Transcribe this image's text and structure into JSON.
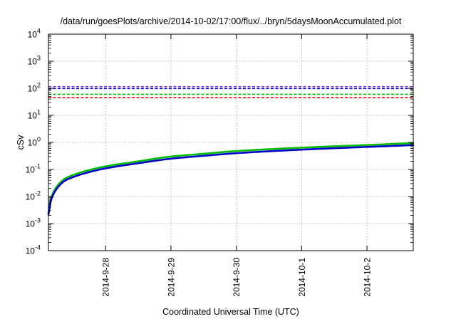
{
  "chart_data": {
    "type": "line",
    "title": "/data/run/goesPlots/archive/2014-10-02/17:00/flux/../bryn/5daysMoonAccumulated.plot",
    "xlabel": "Coordinated Universal Time (UTC)",
    "ylabel": "cSv",
    "y_scale": "log",
    "ylim": [
      0.0001,
      10000
    ],
    "y_ticks": [
      {
        "base": "10",
        "exp": "-4",
        "value": 0.0001
      },
      {
        "base": "10",
        "exp": "-3",
        "value": 0.001
      },
      {
        "base": "10",
        "exp": "-2",
        "value": 0.01
      },
      {
        "base": "10",
        "exp": "-1",
        "value": 0.1
      },
      {
        "base": "10",
        "exp": "0",
        "value": 1
      },
      {
        "base": "10",
        "exp": "1",
        "value": 10
      },
      {
        "base": "10",
        "exp": "2",
        "value": 100
      },
      {
        "base": "10",
        "exp": "3",
        "value": 1000
      },
      {
        "base": "10",
        "exp": "4",
        "value": 10000
      }
    ],
    "xlim": [
      "2014-09-27 03:00",
      "2014-10-02 17:00"
    ],
    "x_ticks": [
      {
        "label": "2014-9-28",
        "value": "2014-09-28 00:00"
      },
      {
        "label": "2014-9-29",
        "value": "2014-09-29 00:00"
      },
      {
        "label": "2014-9-30",
        "value": "2014-09-30 00:00"
      },
      {
        "label": "2014-10-1",
        "value": "2014-10-01 00:00"
      },
      {
        "label": "2014-10-2",
        "value": "2014-10-02 00:00"
      }
    ],
    "grid": true,
    "reference_lines": [
      {
        "value": 115,
        "color": "#8b3fc8"
      },
      {
        "value": 98,
        "color": "#0000cc"
      },
      {
        "value": 60,
        "color": "#00bb00"
      },
      {
        "value": 45,
        "color": "#ee0000"
      }
    ],
    "series": [
      {
        "color": "#00bb00",
        "x": [
          "2014-09-27 03:00",
          "2014-09-27 04:00",
          "2014-09-27 06:00",
          "2014-09-27 09:00",
          "2014-09-27 12:00",
          "2014-09-27 18:00",
          "2014-09-28 00:00",
          "2014-09-28 12:00",
          "2014-09-29 00:00",
          "2014-09-29 12:00",
          "2014-09-30 00:00",
          "2014-09-30 12:00",
          "2014-10-01 00:00",
          "2014-10-01 12:00",
          "2014-10-02 00:00",
          "2014-10-02 12:00",
          "2014-10-02 17:00"
        ],
        "y": [
          0.0026,
          0.009,
          0.023,
          0.045,
          0.062,
          0.095,
          0.13,
          0.2,
          0.3,
          0.38,
          0.48,
          0.56,
          0.64,
          0.72,
          0.8,
          0.9,
          0.95
        ]
      },
      {
        "color": "#0000cc",
        "x": [
          "2014-09-27 03:00",
          "2014-09-27 04:00",
          "2014-09-27 06:00",
          "2014-09-27 09:00",
          "2014-09-27 12:00",
          "2014-09-27 18:00",
          "2014-09-28 00:00",
          "2014-09-28 12:00",
          "2014-09-29 00:00",
          "2014-09-29 12:00",
          "2014-09-30 00:00",
          "2014-09-30 12:00",
          "2014-10-01 00:00",
          "2014-10-01 12:00",
          "2014-10-02 00:00",
          "2014-10-02 12:00",
          "2014-10-02 17:00"
        ],
        "y": [
          0.0022,
          0.0075,
          0.019,
          0.038,
          0.052,
          0.08,
          0.11,
          0.17,
          0.25,
          0.32,
          0.4,
          0.47,
          0.54,
          0.61,
          0.68,
          0.76,
          0.8
        ]
      }
    ]
  }
}
